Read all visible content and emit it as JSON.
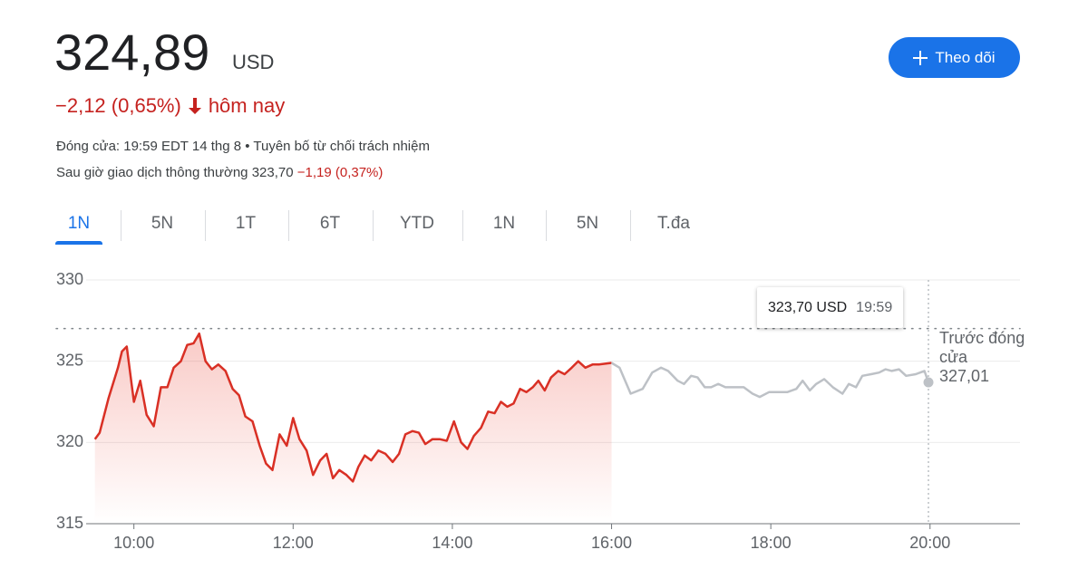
{
  "header": {
    "price": "324,89",
    "currency": "USD",
    "change": "−2,12 (0,65%)",
    "change_period": "hôm nay",
    "follow_button": "Theo dõi",
    "close_info": "Đóng cửa: 19:59 EDT 14 thg 8 • Tuyên bố từ chối trách nhiệm",
    "after_hours_label": "Sau giờ giao dịch thông thường 323,70",
    "after_hours_change": "−1,19 (0,37%)"
  },
  "tabs": [
    "1N",
    "5N",
    "1T",
    "6T",
    "YTD",
    "1N",
    "5N",
    "T.đa"
  ],
  "active_tab": 0,
  "chart_data": {
    "type": "line",
    "grid": true,
    "xlim": [
      9.4,
      21.13
    ],
    "xticks": [
      {
        "value": 10,
        "label": "10:00"
      },
      {
        "value": 12,
        "label": "12:00"
      },
      {
        "value": 14,
        "label": "14:00"
      },
      {
        "value": 16,
        "label": "16:00"
      },
      {
        "value": 18,
        "label": "18:00"
      },
      {
        "value": 20,
        "label": "20:00"
      }
    ],
    "ylim": [
      315,
      330
    ],
    "yticks": [
      315,
      320,
      325,
      330
    ],
    "series": [
      {
        "color": "#d93025",
        "x": [
          9.51,
          9.57,
          9.68,
          9.8,
          9.85,
          9.91,
          10.0,
          10.08,
          10.16,
          10.25,
          10.34,
          10.42,
          10.5,
          10.59,
          10.67,
          10.75,
          10.82,
          10.9,
          10.98,
          11.06,
          11.15,
          11.24,
          11.32,
          11.4,
          11.49,
          11.58,
          11.66,
          11.74,
          11.83,
          11.92,
          12.0,
          12.08,
          12.17,
          12.25,
          12.34,
          12.42,
          12.5,
          12.58,
          12.67,
          12.75,
          12.82,
          12.9,
          12.98,
          13.07,
          13.16,
          13.25,
          13.33,
          13.41,
          13.5,
          13.58,
          13.66,
          13.75,
          13.84,
          13.93,
          14.02,
          14.11,
          14.19,
          14.27,
          14.36,
          14.45,
          14.53,
          14.61,
          14.69,
          14.77,
          14.85,
          14.93,
          15.01,
          15.08,
          15.16,
          15.24,
          15.33,
          15.41,
          15.5,
          15.58,
          15.67,
          15.76,
          15.84,
          16.0
        ],
        "values": [
          320.2,
          320.6,
          322.7,
          324.6,
          325.6,
          325.9,
          322.5,
          323.8,
          321.7,
          321.0,
          323.4,
          323.4,
          324.6,
          325.0,
          326.0,
          326.1,
          326.7,
          325.0,
          324.5,
          324.8,
          324.4,
          323.3,
          322.9,
          321.6,
          321.3,
          319.8,
          318.7,
          318.3,
          320.5,
          319.8,
          321.5,
          320.2,
          319.5,
          318.0,
          318.9,
          319.3,
          317.8,
          318.3,
          318.0,
          317.6,
          318.5,
          319.2,
          318.9,
          319.5,
          319.3,
          318.8,
          319.3,
          320.5,
          320.7,
          320.6,
          319.9,
          320.2,
          320.2,
          320.1,
          321.3,
          320.0,
          319.6,
          320.4,
          320.9,
          321.9,
          321.8,
          322.5,
          322.2,
          322.4,
          323.3,
          323.1,
          323.4,
          323.8,
          323.2,
          324.0,
          324.4,
          324.2,
          324.6,
          325.0,
          324.6,
          324.8,
          324.8,
          324.9
        ]
      },
      {
        "color": "#bdc1c6",
        "x": [
          16.0,
          16.1,
          16.24,
          16.39,
          16.51,
          16.62,
          16.71,
          16.83,
          16.91,
          17.0,
          17.08,
          17.17,
          17.25,
          17.34,
          17.43,
          17.54,
          17.66,
          17.77,
          17.86,
          17.98,
          18.09,
          18.21,
          18.32,
          18.4,
          18.49,
          18.57,
          18.67,
          18.78,
          18.9,
          18.98,
          19.07,
          19.15,
          19.26,
          19.36,
          19.44,
          19.52,
          19.61,
          19.7,
          19.82,
          19.93,
          19.98
        ],
        "values": [
          324.9,
          324.6,
          323.0,
          323.3,
          324.3,
          324.6,
          324.4,
          323.8,
          323.6,
          324.1,
          324.0,
          323.4,
          323.4,
          323.6,
          323.4,
          323.4,
          323.4,
          323.0,
          322.8,
          323.1,
          323.1,
          323.1,
          323.3,
          323.8,
          323.2,
          323.6,
          323.9,
          323.4,
          323.0,
          323.6,
          323.4,
          324.1,
          324.2,
          324.3,
          324.5,
          324.4,
          324.5,
          324.1,
          324.2,
          324.4,
          323.7
        ]
      }
    ],
    "previous_close": {
      "label": "Trước đóng cửa",
      "value": 327.01,
      "value_label": "327,01"
    },
    "tooltip": {
      "price": "323,70 USD",
      "time": "19:59"
    }
  }
}
